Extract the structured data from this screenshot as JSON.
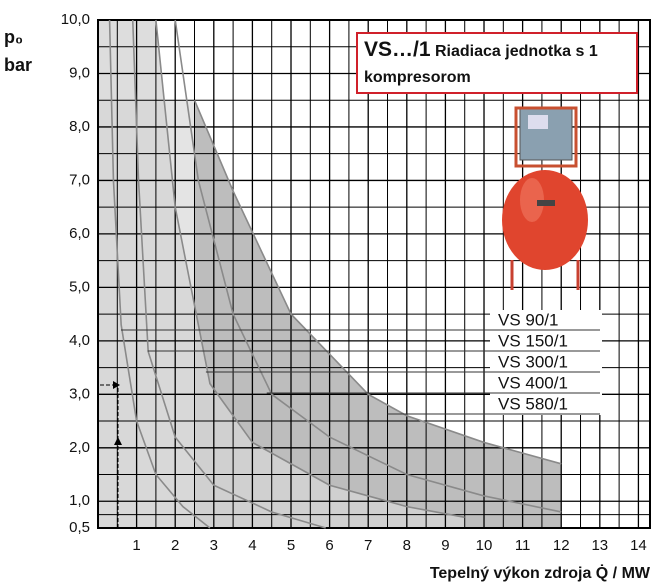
{
  "chart_data": {
    "type": "line",
    "title": "VS…/1",
    "subtitle": "Riadiaca jednotka s 1 kompresorom",
    "ylabel_lines": [
      "p₀",
      "bar"
    ],
    "xlabel": "Tepelný výkon zdroja Q̇ / MW",
    "xlim": [
      0,
      14.3
    ],
    "ylim": [
      0.5,
      10
    ],
    "xticks": [
      1,
      2,
      3,
      4,
      5,
      6,
      7,
      8,
      9,
      10,
      11,
      12,
      13,
      14
    ],
    "yticks": [
      {
        "value": 0.5,
        "label": "0,5"
      },
      {
        "value": 1,
        "label": "1,0"
      },
      {
        "value": 2,
        "label": "2,0"
      },
      {
        "value": 3,
        "label": "3,0"
      },
      {
        "value": 4,
        "label": "4,0"
      },
      {
        "value": 5,
        "label": "5,0"
      },
      {
        "value": 6,
        "label": "6,0"
      },
      {
        "value": 7,
        "label": "7,0"
      },
      {
        "value": 8,
        "label": "8,0"
      },
      {
        "value": 9,
        "label": "9,0"
      },
      {
        "value": 10,
        "label": "10,0"
      }
    ],
    "grid": true,
    "series": [
      {
        "name": "VS 90/1",
        "color": "#8a8a8a",
        "x": [
          0.3,
          0.4,
          0.6,
          1,
          1.5,
          2.2,
          2.9
        ],
        "values": [
          10,
          7,
          4.3,
          2.5,
          1.5,
          0.9,
          0.5
        ]
      },
      {
        "name": "VS 150/1",
        "color": "#8a8a8a",
        "x": [
          0.9,
          1.05,
          1.3,
          2,
          3,
          4.5,
          5.9
        ],
        "values": [
          10,
          7,
          3.8,
          2.2,
          1.3,
          0.8,
          0.5
        ]
      },
      {
        "name": "VS 300/1",
        "color": "#8a8a8a",
        "x": [
          1.5,
          2,
          2.9,
          4,
          6,
          8,
          9.5
        ],
        "values": [
          10,
          6.5,
          3.2,
          2.1,
          1.3,
          0.9,
          0.7
        ]
      },
      {
        "name": "VS 400/1",
        "color": "#8a8a8a",
        "x": [
          2,
          2.6,
          3.5,
          4.5,
          6,
          8,
          10,
          12
        ],
        "values": [
          10,
          7,
          4.5,
          3,
          2.2,
          1.5,
          1.1,
          0.8
        ]
      },
      {
        "name": "VS 580/1",
        "color": "#8a8a8a",
        "x": [
          2.5,
          3.5,
          5,
          7,
          8,
          10,
          12
        ],
        "values": [
          8.5,
          6.8,
          4.5,
          3,
          2.6,
          2.1,
          1.7
        ]
      }
    ]
  }
}
